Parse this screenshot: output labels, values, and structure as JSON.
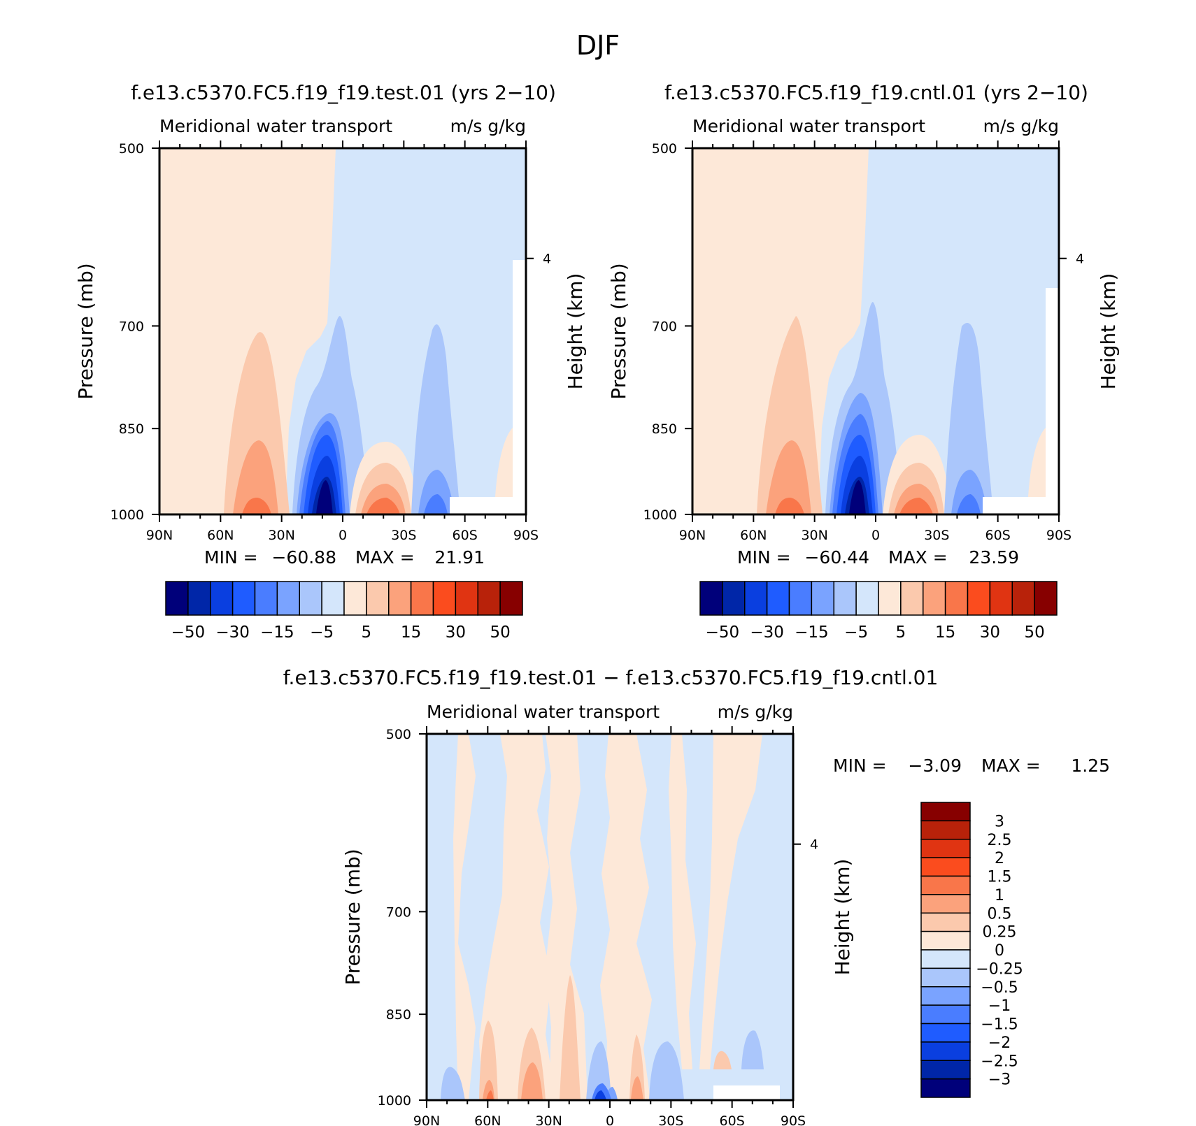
{
  "season": "DJF",
  "chart_data": [
    {
      "type": "heatmap",
      "title": "f.e13.c5370.FC5.f19_f19.test.01 (yrs 2−10)",
      "subtitle_left": "Meridional water transport",
      "subtitle_right": "m/s g/kg",
      "ylabel": "Pressure (mb)",
      "ylabel_right": "Height (km)",
      "x_ticks": [
        "90N",
        "60N",
        "30N",
        "0",
        "30S",
        "60S",
        "90S"
      ],
      "y_ticks": [
        500,
        700,
        850,
        1000
      ],
      "y_right_ticks": [
        "4"
      ],
      "ylim": [
        1000,
        500
      ],
      "stats": {
        "min_label": "MIN =",
        "min": "−60.88",
        "max_label": "MAX =",
        "max": "21.91"
      },
      "colorbar": {
        "levels": [
          -60,
          -50,
          -40,
          -30,
          -20,
          -15,
          -10,
          -5,
          0,
          5,
          10,
          15,
          20,
          30,
          40,
          50,
          60
        ],
        "colors": [
          "#00007a",
          "#0026a8",
          "#0a3fe0",
          "#1f5cff",
          "#4a7dff",
          "#7aa3ff",
          "#aac6fb",
          "#d4e6fb",
          "#fde8d8",
          "#fbc9ad",
          "#fba27c",
          "#f9764a",
          "#fb4c1e",
          "#e03412",
          "#b8220a",
          "#870000"
        ],
        "labels": [
          "−50",
          "−30",
          "−15",
          "−5",
          "5",
          "15",
          "30",
          "50"
        ]
      },
      "features": [
        {
          "lat": 60,
          "p": 500,
          "value": 0
        },
        {
          "lat": -40,
          "p": 500,
          "value": 0
        },
        {
          "lat": 40,
          "p": 980,
          "value": 10
        },
        {
          "lat": 13,
          "p": 990,
          "value": -60.88
        },
        {
          "lat": -18,
          "p": 990,
          "value": 21.91
        },
        {
          "lat": -47,
          "p": 990,
          "value": -15
        }
      ]
    },
    {
      "type": "heatmap",
      "title": "f.e13.c5370.FC5.f19_f19.cntl.01 (yrs 2−10)",
      "subtitle_left": "Meridional water transport",
      "subtitle_right": "m/s g/kg",
      "ylabel": "Pressure (mb)",
      "ylabel_right": "Height (km)",
      "x_ticks": [
        "90N",
        "60N",
        "30N",
        "0",
        "30S",
        "60S",
        "90S"
      ],
      "y_ticks": [
        500,
        700,
        850,
        1000
      ],
      "y_right_ticks": [
        "4"
      ],
      "ylim": [
        1000,
        500
      ],
      "stats": {
        "min_label": "MIN =",
        "min": "−60.44",
        "max_label": "MAX =",
        "max": "23.59"
      },
      "colorbar": {
        "levels": [
          -60,
          -50,
          -40,
          -30,
          -20,
          -15,
          -10,
          -5,
          0,
          5,
          10,
          15,
          20,
          30,
          40,
          50,
          60
        ],
        "colors": [
          "#00007a",
          "#0026a8",
          "#0a3fe0",
          "#1f5cff",
          "#4a7dff",
          "#7aa3ff",
          "#aac6fb",
          "#d4e6fb",
          "#fde8d8",
          "#fbc9ad",
          "#fba27c",
          "#f9764a",
          "#fb4c1e",
          "#e03412",
          "#b8220a",
          "#870000"
        ],
        "labels": [
          "−50",
          "−30",
          "−15",
          "−5",
          "5",
          "15",
          "30",
          "50"
        ]
      },
      "features": [
        {
          "lat": 60,
          "p": 500,
          "value": 0
        },
        {
          "lat": -40,
          "p": 500,
          "value": 0
        },
        {
          "lat": 40,
          "p": 980,
          "value": 10
        },
        {
          "lat": 13,
          "p": 990,
          "value": -60.44
        },
        {
          "lat": -18,
          "p": 990,
          "value": 23.59
        },
        {
          "lat": -47,
          "p": 990,
          "value": -15
        }
      ]
    },
    {
      "type": "heatmap",
      "title": "f.e13.c5370.FC5.f19_f19.test.01 − f.e13.c5370.FC5.f19_f19.cntl.01",
      "subtitle_left": "Meridional water transport",
      "subtitle_right": "m/s g/kg",
      "ylabel": "Pressure (mb)",
      "ylabel_right": "Height (km)",
      "x_ticks": [
        "90N",
        "60N",
        "30N",
        "0",
        "30S",
        "60S",
        "90S"
      ],
      "y_ticks": [
        500,
        700,
        850,
        1000
      ],
      "y_right_ticks": [
        "4"
      ],
      "ylim": [
        1000,
        500
      ],
      "stats": {
        "min_label": "MIN =",
        "min": "−3.09",
        "max_label": "MAX =",
        "max": "1.25"
      },
      "colorbar": {
        "levels": [
          -3.5,
          -3,
          -2.5,
          -2,
          -1.5,
          -1,
          -0.5,
          -0.25,
          0,
          0.25,
          0.5,
          1,
          1.5,
          2,
          2.5,
          3,
          3.5
        ],
        "colors": [
          "#00007a",
          "#0026a8",
          "#0a3fe0",
          "#1f5cff",
          "#4a7dff",
          "#7aa3ff",
          "#aac6fb",
          "#d4e6fb",
          "#fde8d8",
          "#fbc9ad",
          "#fba27c",
          "#f9764a",
          "#fb4c1e",
          "#e03412",
          "#b8220a",
          "#870000"
        ],
        "labels": [
          "3",
          "2.5",
          "2",
          "1.5",
          "1",
          "0.5",
          "0.25",
          "0",
          "−0.25",
          "−0.5",
          "−1",
          "−1.5",
          "−2",
          "−2.5",
          "−3"
        ]
      },
      "features": [
        {
          "lat": 0,
          "p": 990,
          "value": -3.09
        },
        {
          "lat": 30,
          "p": 980,
          "value": 1.25
        },
        {
          "lat": -15,
          "p": 980,
          "value": 1
        },
        {
          "lat": 50,
          "p": 980,
          "value": -0.5
        },
        {
          "lat": -45,
          "p": 970,
          "value": -0.5
        }
      ]
    }
  ]
}
